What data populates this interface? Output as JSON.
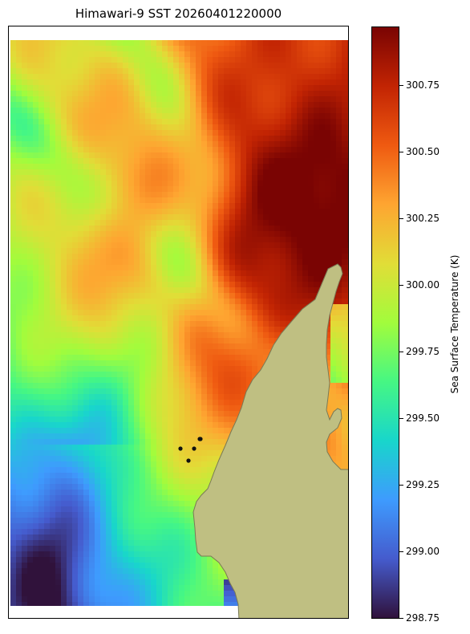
{
  "title": "Himawari-9 SST 20260401220000",
  "colorbar": {
    "label": "Sea Surface Temperature (K)",
    "min": 298.75,
    "max": 300.97,
    "ticks": [
      "298.75",
      "299.00",
      "299.25",
      "299.50",
      "299.75",
      "300.00",
      "300.25",
      "300.50",
      "300.75"
    ],
    "colormap": "turbo"
  },
  "colors": {
    "land": "#bfbf82",
    "coast": "#7a7a55",
    "marker": "#111111"
  },
  "markers_count": 5
}
